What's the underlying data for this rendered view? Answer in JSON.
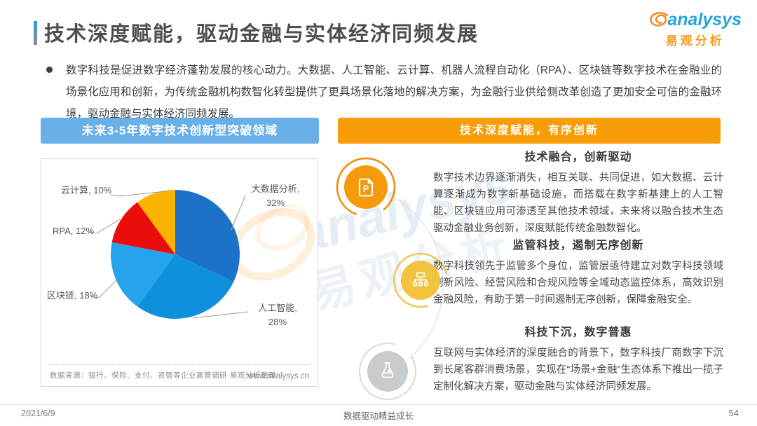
{
  "page": {
    "title": "技术深度赋能，驱动金融与实体经济同频发展",
    "footer": {
      "date": "2021/6/9",
      "motto": "数据驱动精益成长",
      "page_number": "54"
    }
  },
  "logo": {
    "brand": "analysys",
    "brand_cn": "易观分析"
  },
  "watermark": {
    "en": "analysys",
    "cn": "易观分析"
  },
  "intro": {
    "text": "数字科技是促进数字经济蓬勃发展的核心动力。大数据、人工智能、云计算、机器人流程自动化（RPA）、区块链等数字技术在金融业的场景化应用和创新，为传统金融机构数智化转型提供了更具场景化落地的解决方案，为金融行业供给侧改革创造了更加安全可信的金融环境，驱动金融与实体经济同频发展。"
  },
  "left_panel": {
    "header": "未来3-5年数字技术创新型突破领域",
    "source": "数据来源：银行、保险、支付、资管等企业高管调研·易观分析整理",
    "url": "www.analysys.cn"
  },
  "right_panel": {
    "header": "技术深度赋能，有序创新",
    "sections": [
      {
        "icon": "document-p-icon",
        "title": "技术融合，创新驱动",
        "body": "数字技术边界逐渐消失，相互关联、共同促进，如大数据、云计算逐渐成为数字新基础设施，而搭载在数字新基建上的人工智能、区块链应用可渗透至其他技术领域，未来将以融合技术生态驱动金融业务创新，深度赋能传统金融数智化。"
      },
      {
        "icon": "flowchart-icon",
        "title": "监管科技，遏制无序创新",
        "body": "数字科技领先于监管多个身位，监管层亟待建立对数字科技领域创新风险、经营风险和合规风险等全域动态监控体系，高效识别金融风险，有助于第一时间遏制无序创新，保障金融安全。"
      },
      {
        "icon": "flask-icon",
        "title": "科技下沉，数字普惠",
        "body": "互联网与实体经济的深度融合的背景下，数字科技厂商数字下沉到长尾客群消费场景，实现在“场景+金融”生态体系下推出一揽子定制化解决方案，驱动金融与实体经济同频发展。"
      }
    ]
  },
  "chart_data": {
    "type": "pie",
    "title": "未来3-5年数字技术创新型突破领域",
    "labels": [
      "大数据分析",
      "人工智能",
      "区块链",
      "RPA",
      "云计算"
    ],
    "values": [
      32,
      28,
      18,
      12,
      10
    ],
    "unit": "%",
    "colors": [
      "#1b72c8",
      "#0f90dc",
      "#27a3ee",
      "#ed0c0c",
      "#fbb303"
    ],
    "start_angle_deg": 0,
    "direction": "clockwise",
    "legend": "none",
    "data_labels": "outside-with-leader-lines"
  },
  "theme": {
    "left_header_bg": "#69b0e8",
    "right_header_bg": "#f89c08",
    "logo_blue": "#29a3db",
    "logo_orange": "#f59b21",
    "title_color": "#4e4e4e"
  }
}
